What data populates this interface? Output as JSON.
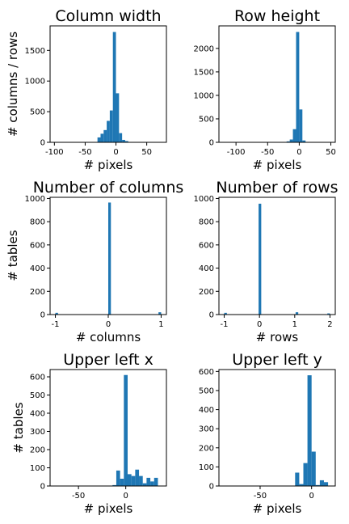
{
  "chart_data": [
    {
      "type": "bar",
      "title": "Column width",
      "xlabel": "# pixels",
      "ylabel": "# columns / rows",
      "xlim": [
        -107,
        82
      ],
      "ylim": [
        0,
        1900
      ],
      "xticks": [
        -100,
        -50,
        0,
        50
      ],
      "yticks": [
        0,
        500,
        1000,
        1500
      ],
      "bin_width": 5,
      "bars": [
        {
          "x": -27.5,
          "value": 80
        },
        {
          "x": -22.5,
          "value": 140
        },
        {
          "x": -17.5,
          "value": 200
        },
        {
          "x": -12.5,
          "value": 350
        },
        {
          "x": -7.5,
          "value": 520
        },
        {
          "x": -2.5,
          "value": 1800
        },
        {
          "x": 2.5,
          "value": 800
        },
        {
          "x": 7.5,
          "value": 150
        },
        {
          "x": 12.5,
          "value": 40
        },
        {
          "x": 17.5,
          "value": 20
        }
      ]
    },
    {
      "type": "bar",
      "title": "Row height",
      "xlabel": "# pixels",
      "ylabel": "",
      "xlim": [
        -127,
        57
      ],
      "ylim": [
        0,
        2480
      ],
      "xticks": [
        -100,
        -50,
        0,
        50
      ],
      "yticks": [
        0,
        500,
        1000,
        1500,
        2000
      ],
      "bin_width": 5,
      "bars": [
        {
          "x": -17.5,
          "value": 20
        },
        {
          "x": -12.5,
          "value": 60
        },
        {
          "x": -7.5,
          "value": 280
        },
        {
          "x": -2.5,
          "value": 2350
        },
        {
          "x": 2.5,
          "value": 700
        },
        {
          "x": 7.5,
          "value": 40
        }
      ]
    },
    {
      "type": "bar",
      "title": "Number of columns",
      "xlabel": "# columns",
      "ylabel": "# tables",
      "xlim": [
        -1.1,
        1.1
      ],
      "ylim": [
        0,
        1010
      ],
      "xticks": [
        -1,
        0,
        1
      ],
      "yticks": [
        0,
        200,
        400,
        600,
        800,
        1000
      ],
      "bin_width": 0.05,
      "bars": [
        {
          "x": -0.975,
          "value": 15
        },
        {
          "x": 0.025,
          "value": 965
        },
        {
          "x": 0.975,
          "value": 20
        }
      ]
    },
    {
      "type": "bar",
      "title": "Number of rows",
      "xlabel": "# rows",
      "ylabel": "",
      "xlim": [
        -1.15,
        2.15
      ],
      "ylim": [
        0,
        1010
      ],
      "xticks": [
        -1,
        0,
        1,
        2
      ],
      "yticks": [
        0,
        200,
        400,
        600,
        800,
        1000
      ],
      "bin_width": 0.075,
      "bars": [
        {
          "x": -0.9625,
          "value": 15
        },
        {
          "x": 0.0125,
          "value": 955
        },
        {
          "x": 1.0625,
          "value": 20
        },
        {
          "x": 1.9625,
          "value": 10
        }
      ]
    },
    {
      "type": "bar",
      "title": "Upper left x",
      "xlabel": "# pixels",
      "ylabel": "# tables",
      "xlim": [
        -80,
        43
      ],
      "ylim": [
        0,
        640
      ],
      "xticks": [
        -50,
        0
      ],
      "yticks": [
        0,
        100,
        200,
        300,
        400,
        500,
        600
      ],
      "bin_width": 4,
      "bars": [
        {
          "x": -12,
          "value": 5
        },
        {
          "x": -8,
          "value": 85
        },
        {
          "x": -4,
          "value": 40
        },
        {
          "x": 0,
          "value": 610
        },
        {
          "x": 4,
          "value": 65
        },
        {
          "x": 8,
          "value": 55
        },
        {
          "x": 12,
          "value": 90
        },
        {
          "x": 16,
          "value": 55
        },
        {
          "x": 20,
          "value": 15
        },
        {
          "x": 24,
          "value": 45
        },
        {
          "x": 28,
          "value": 25
        },
        {
          "x": 32,
          "value": 45
        }
      ]
    },
    {
      "type": "bar",
      "title": "Upper left y",
      "xlabel": "# pixels",
      "ylabel": "",
      "xlim": [
        -90,
        23
      ],
      "ylim": [
        0,
        610
      ],
      "xticks": [
        -50,
        0
      ],
      "yticks": [
        0,
        100,
        200,
        300,
        400,
        500,
        600
      ],
      "bin_width": 4,
      "bars": [
        {
          "x": -14,
          "value": 70
        },
        {
          "x": -10,
          "value": 10
        },
        {
          "x": -6,
          "value": 120
        },
        {
          "x": -2,
          "value": 580
        },
        {
          "x": 2,
          "value": 180
        },
        {
          "x": 6,
          "value": 5
        },
        {
          "x": 10,
          "value": 30
        },
        {
          "x": 14,
          "value": 20
        }
      ]
    }
  ],
  "colors": {
    "bar": "#1f77b4",
    "axis": "#000000",
    "background": "#ffffff"
  }
}
